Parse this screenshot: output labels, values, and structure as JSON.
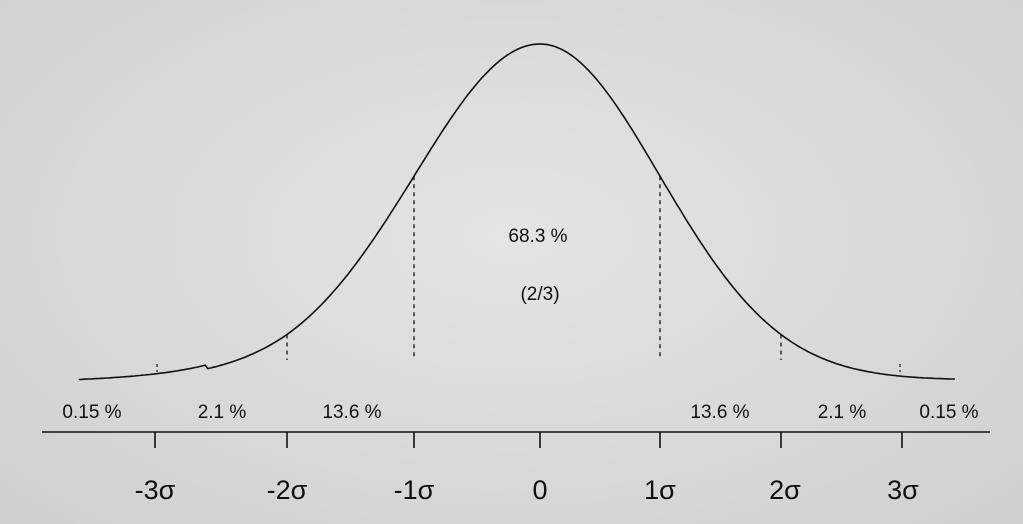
{
  "figure": {
    "center_labels": [
      "68.3 %",
      "(2/3)"
    ],
    "percent_labels": [
      "0.15 %",
      "2.1 %",
      "13.6 %",
      "13.6 %",
      "2.1 %",
      "0.15 %"
    ],
    "axis_labels": [
      "-3σ",
      "-2σ",
      "-1σ",
      "0",
      "1σ",
      "2σ",
      "3σ"
    ]
  },
  "chart_data": {
    "type": "area",
    "distribution": "normal",
    "x_ticks": [
      -3,
      -2,
      -1,
      0,
      1,
      2,
      3
    ],
    "tick_labels": [
      "-3σ",
      "-2σ",
      "-1σ",
      "0",
      "1σ",
      "2σ",
      "3σ"
    ],
    "regions": [
      {
        "label": "0.15 %",
        "percent": 0.15,
        "from": null,
        "to": -3
      },
      {
        "label": "2.1 %",
        "percent": 2.1,
        "from": -3,
        "to": -2
      },
      {
        "label": "13.6 %",
        "percent": 13.6,
        "from": -2,
        "to": -1
      },
      {
        "label": "68.3 %",
        "percent": 68.3,
        "from": -1,
        "to": 1
      },
      {
        "label": "13.6 %",
        "percent": 13.6,
        "from": 1,
        "to": 2
      },
      {
        "label": "2.1 %",
        "percent": 2.1,
        "from": 2,
        "to": 3
      },
      {
        "label": "0.15 %",
        "percent": 0.15,
        "from": 3,
        "to": null
      }
    ],
    "annotations": [
      "(2/3)"
    ],
    "dashed_boundaries": [
      -2,
      -1,
      1,
      2
    ],
    "grid": false,
    "colors": {
      "curve": "#111111",
      "background": "#dcdcd9"
    }
  }
}
